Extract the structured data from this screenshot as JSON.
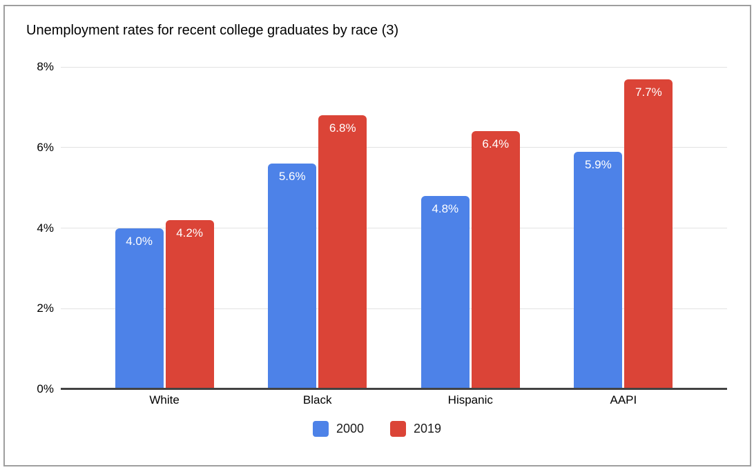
{
  "window": {
    "background": "#ffffff",
    "frame_border_color": "#9e9e9e"
  },
  "chart_data": {
    "type": "bar",
    "title": "Unemployment rates for recent college graduates by race (3)",
    "categories": [
      "White",
      "Black",
      "Hispanic",
      "AAPI"
    ],
    "series": [
      {
        "name": "2000",
        "color": "#4d82e8",
        "values": [
          4.0,
          5.6,
          4.8,
          5.9
        ],
        "labels": [
          "4.0%",
          "5.6%",
          "4.8%",
          "5.9%"
        ]
      },
      {
        "name": "2019",
        "color": "#db4437",
        "values": [
          4.2,
          6.8,
          6.4,
          7.7
        ],
        "labels": [
          "4.2%",
          "6.8%",
          "6.4%",
          "7.7%"
        ]
      }
    ],
    "ylim": [
      0,
      8
    ],
    "yticks": [
      {
        "value": 0,
        "label": "0%"
      },
      {
        "value": 2,
        "label": "2%"
      },
      {
        "value": 4,
        "label": "4%"
      },
      {
        "value": 6,
        "label": "6%"
      },
      {
        "value": 8,
        "label": "8%"
      }
    ],
    "grid": true,
    "legend_position": "bottom",
    "bar_label_color": "#ffffff",
    "gridline_color": "#e2e2e2",
    "axis_line_color": "#424242"
  }
}
